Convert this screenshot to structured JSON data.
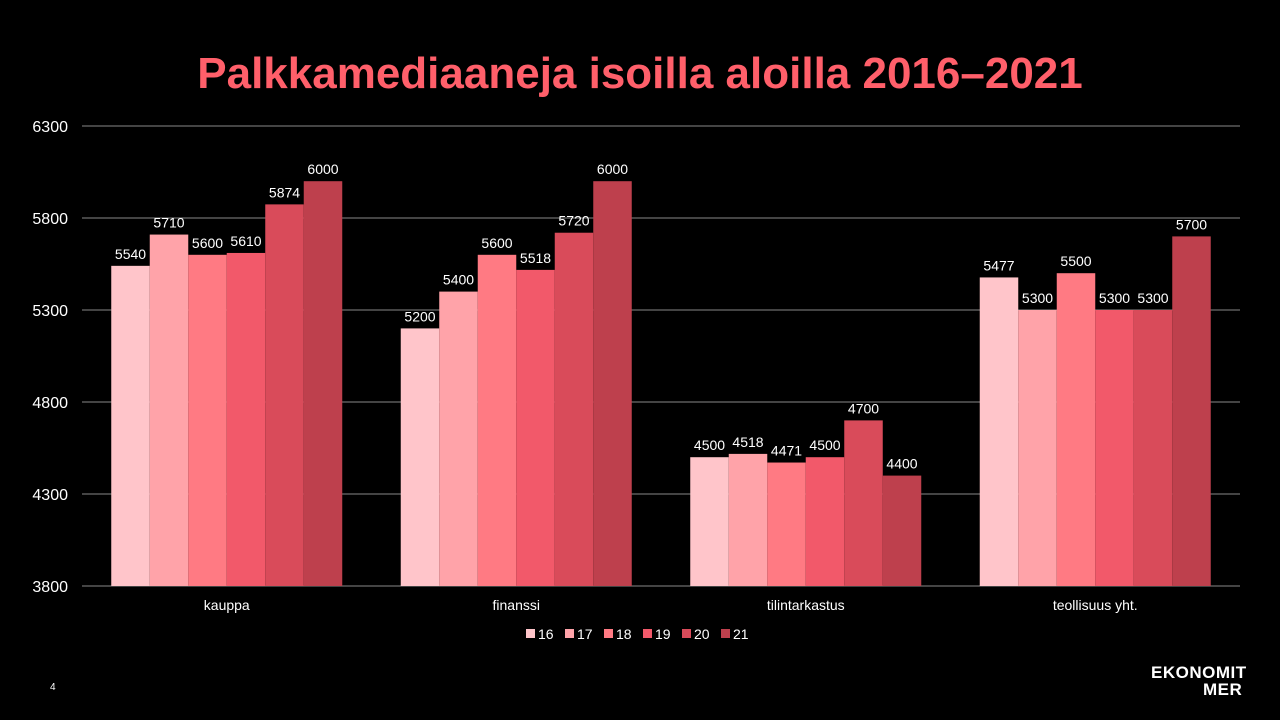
{
  "slide": {
    "page_number": "4",
    "logo_line1": "EKONOMIT",
    "logo_line2": "MER"
  },
  "colors": {
    "title": "#FF5F6A",
    "text": "#FFFFFF",
    "grid": "#888888",
    "background": "#000000",
    "series": [
      "#FFC5CA",
      "#FFA3A9",
      "#FF7A83",
      "#F2596A",
      "#D94B5A",
      "#BE404D"
    ]
  },
  "chart_data": {
    "type": "bar",
    "title": "Palkkamediaaneja isoilla aloilla 2016–2021",
    "xlabel": "",
    "ylabel": "",
    "ylim": [
      3800,
      6300
    ],
    "yticks": [
      3800,
      4300,
      4800,
      5300,
      5800,
      6300
    ],
    "grid": true,
    "legend_position": "bottom",
    "categories": [
      "kauppa",
      "finanssi",
      "tilintarkastus",
      "teollisuus yht."
    ],
    "series": [
      {
        "name": "16",
        "values": [
          5540,
          5200,
          4500,
          5477
        ]
      },
      {
        "name": "17",
        "values": [
          5710,
          5400,
          4518,
          5300
        ]
      },
      {
        "name": "18",
        "values": [
          5600,
          5600,
          4471,
          5500
        ]
      },
      {
        "name": "19",
        "values": [
          5610,
          5518,
          4500,
          5300
        ]
      },
      {
        "name": "20",
        "values": [
          5874,
          5720,
          4700,
          5300
        ]
      },
      {
        "name": "21",
        "values": [
          6000,
          6000,
          4400,
          5700
        ]
      }
    ]
  }
}
